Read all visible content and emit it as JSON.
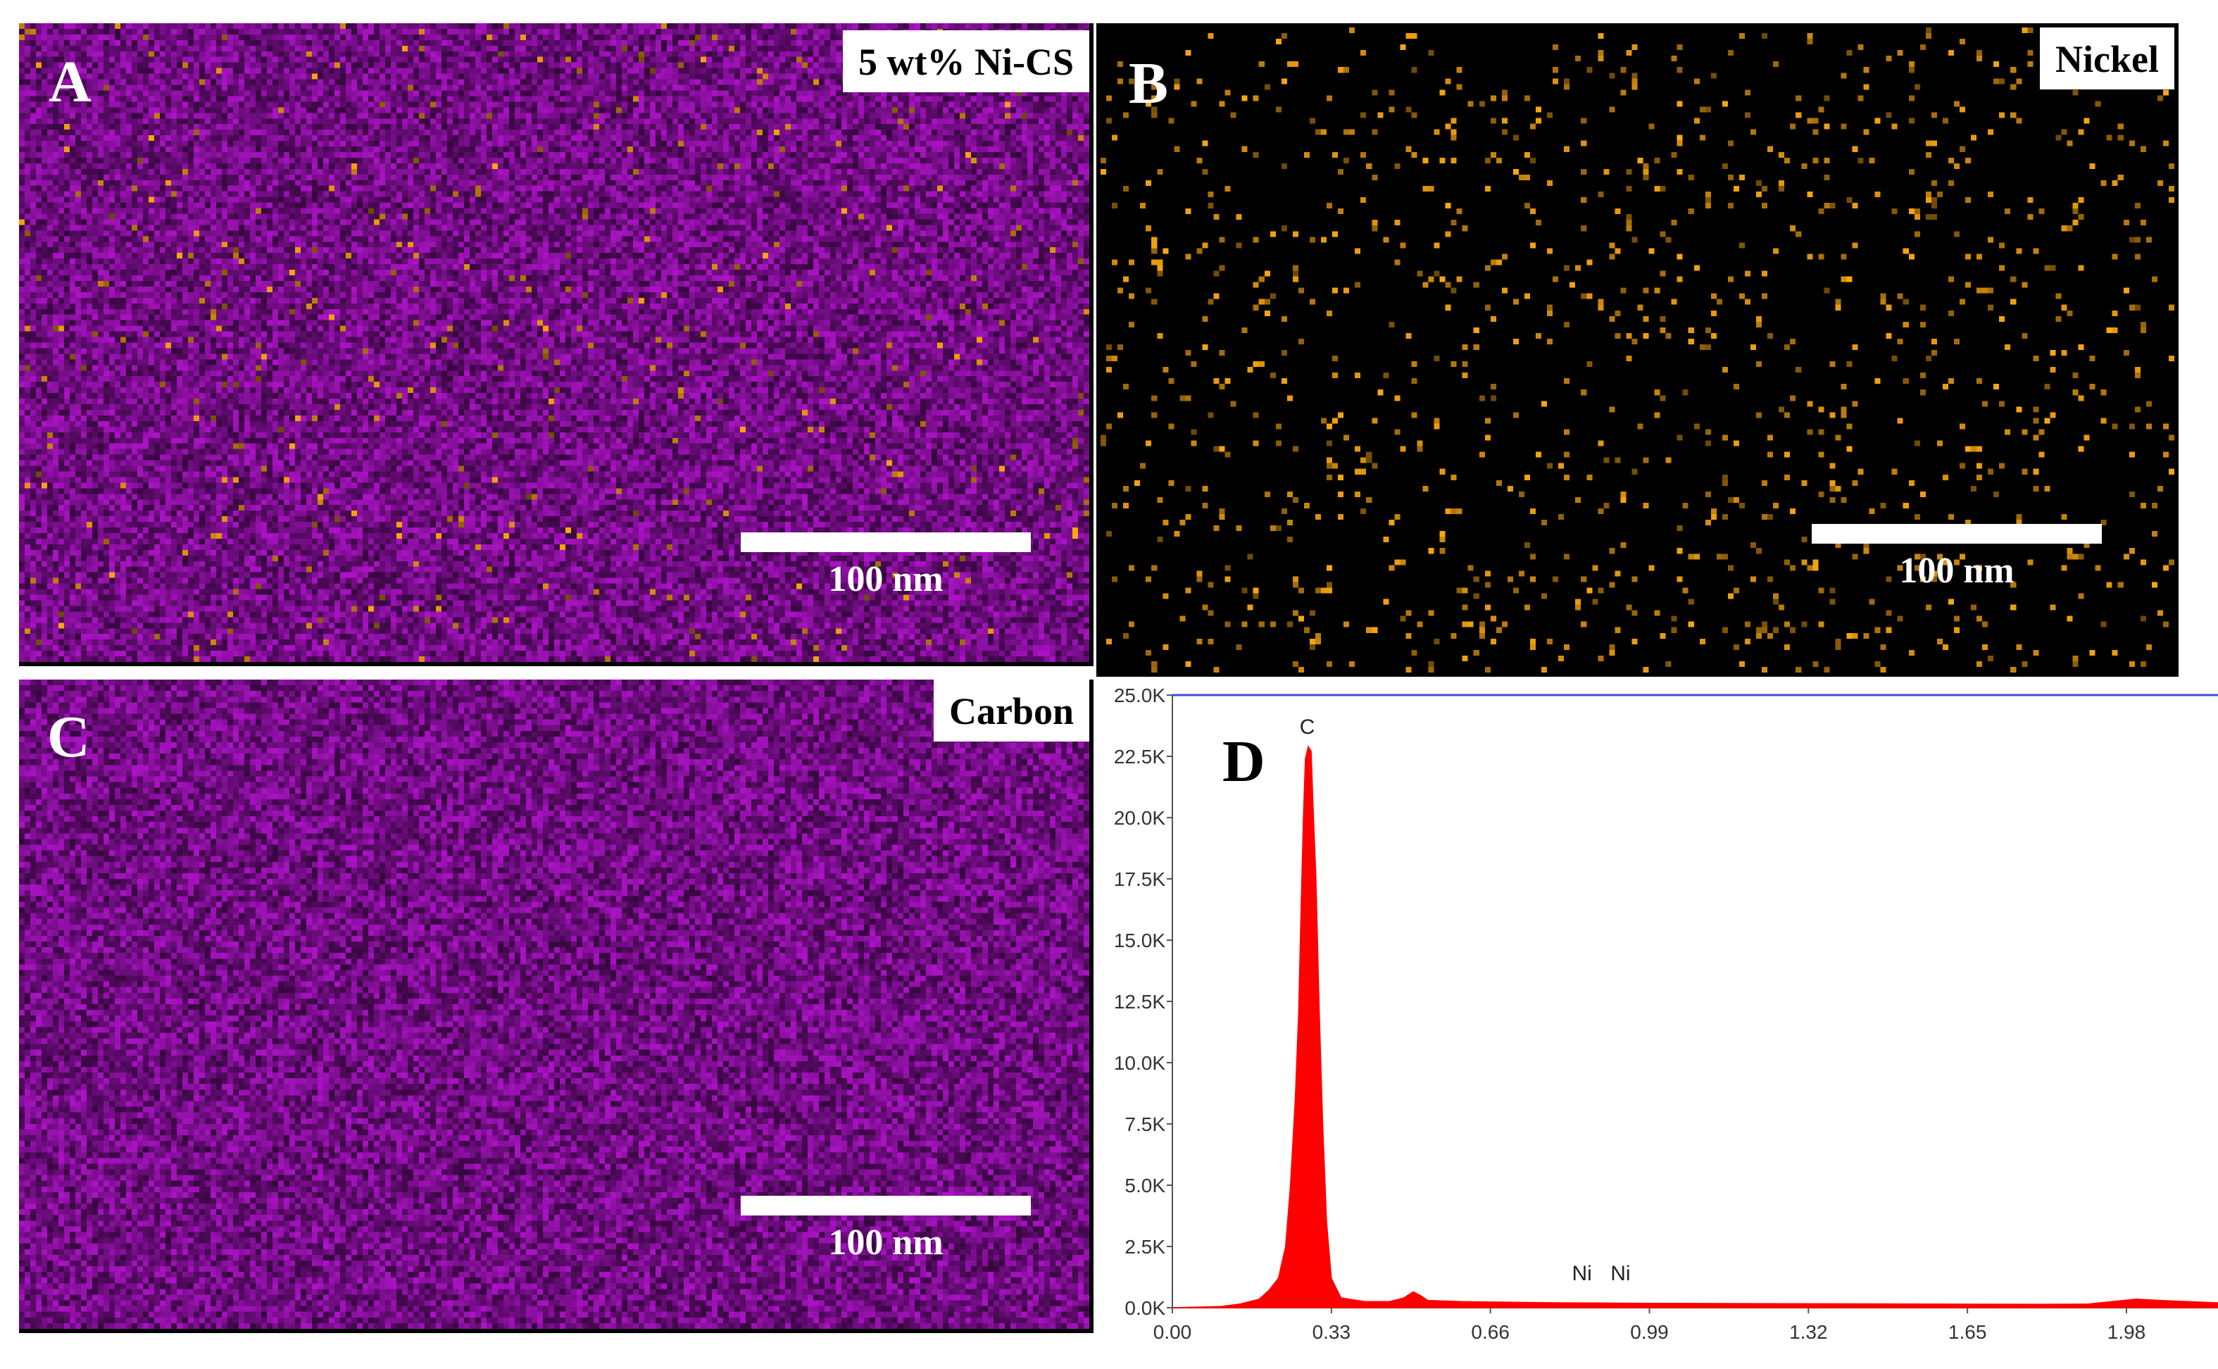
{
  "figure": {
    "panels": [
      {
        "letter": "A",
        "label": "5 wt% Ni-CS",
        "scale_bar": "100 nm",
        "map": "overlay"
      },
      {
        "letter": "B",
        "label": "Nickel",
        "scale_bar": "100 nm",
        "map": "nickel"
      },
      {
        "letter": "C",
        "label": "Carbon",
        "scale_bar": "100 nm",
        "map": "carbon"
      },
      {
        "letter": "D"
      }
    ],
    "colors": {
      "carbon": "#9b16b3",
      "nickel": "#f0a020",
      "background": "#000000",
      "spectrum": "#ff0000",
      "axis": "#3b4fd0"
    }
  },
  "chart_data": {
    "type": "area",
    "x_ticks": [
      "0.00",
      "0.33",
      "0.66",
      "0.99",
      "1.32",
      "1.65",
      "1.98"
    ],
    "y_ticks": [
      "0.0K",
      "2.5K",
      "5.0K",
      "7.5K",
      "10.0K",
      "12.5K",
      "15.0K",
      "17.5K",
      "20.0K",
      "22.5K",
      "25.0K"
    ],
    "xlim": [
      0.0,
      2.17
    ],
    "ylim": [
      0,
      25000
    ],
    "xlabel": "",
    "ylabel": "",
    "peak_labels": [
      {
        "text": "C",
        "x": 0.28,
        "y": 22900
      },
      {
        "text": "Ni",
        "x": 0.85,
        "y": 600
      },
      {
        "text": "Ni",
        "x": 0.93,
        "y": 600
      }
    ],
    "series": [
      {
        "values": [
          [
            0.0,
            0
          ],
          [
            0.1,
            50
          ],
          [
            0.14,
            150
          ],
          [
            0.18,
            350
          ],
          [
            0.2,
            700
          ],
          [
            0.22,
            1200
          ],
          [
            0.235,
            2500
          ],
          [
            0.245,
            5000
          ],
          [
            0.255,
            8500
          ],
          [
            0.262,
            12000
          ],
          [
            0.268,
            17000
          ],
          [
            0.272,
            20000
          ],
          [
            0.276,
            22400
          ],
          [
            0.282,
            22900
          ],
          [
            0.288,
            22700
          ],
          [
            0.292,
            20500
          ],
          [
            0.298,
            17500
          ],
          [
            0.305,
            12000
          ],
          [
            0.312,
            7500
          ],
          [
            0.32,
            3500
          ],
          [
            0.33,
            1200
          ],
          [
            0.35,
            400
          ],
          [
            0.4,
            250
          ],
          [
            0.45,
            250
          ],
          [
            0.48,
            400
          ],
          [
            0.5,
            650
          ],
          [
            0.515,
            500
          ],
          [
            0.53,
            300
          ],
          [
            0.6,
            250
          ],
          [
            0.8,
            200
          ],
          [
            1.0,
            180
          ],
          [
            1.4,
            160
          ],
          [
            1.8,
            140
          ],
          [
            1.9,
            150
          ],
          [
            2.0,
            350
          ],
          [
            2.05,
            300
          ],
          [
            2.17,
            200
          ]
        ]
      }
    ]
  }
}
